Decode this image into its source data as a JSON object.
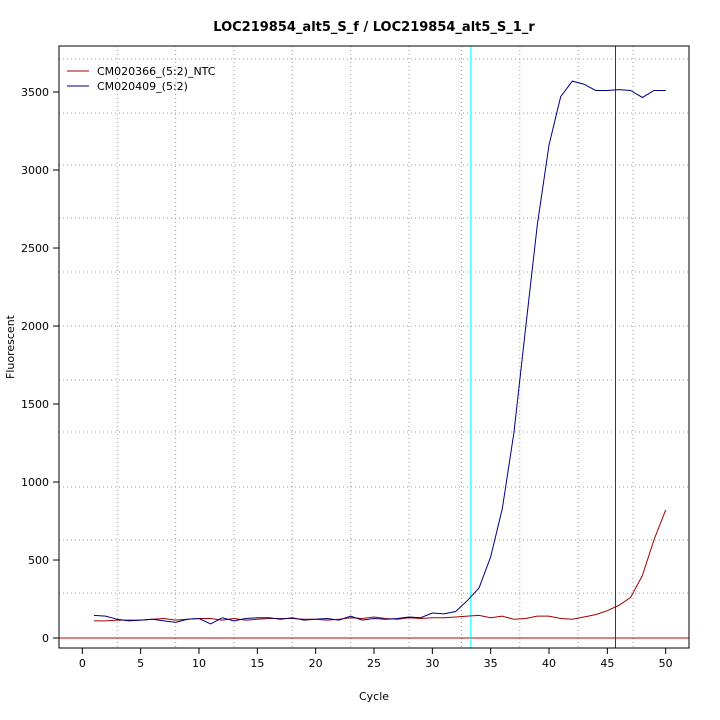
{
  "chart_data": {
    "type": "line",
    "title": "LOC219854_alt5_S_f / LOC219854_alt5_S_1_r",
    "x_label": "Cycle",
    "y_label": "Fluorescent",
    "x": [
      1,
      2,
      3,
      4,
      5,
      6,
      7,
      8,
      9,
      10,
      11,
      12,
      13,
      14,
      15,
      16,
      17,
      18,
      19,
      20,
      21,
      22,
      23,
      24,
      25,
      26,
      27,
      28,
      29,
      30,
      31,
      32,
      33,
      34,
      35,
      36,
      37,
      38,
      39,
      40,
      41,
      42,
      43,
      44,
      45,
      46,
      47,
      48,
      49,
      50
    ],
    "series": [
      {
        "name": "CM020366_(5:2)_NTC",
        "color": "#a00000",
        "values": [
          110,
          110,
          115,
          115,
          115,
          120,
          125,
          115,
          120,
          125,
          125,
          115,
          125,
          115,
          120,
          125,
          125,
          125,
          120,
          120,
          115,
          120,
          130,
          125,
          135,
          125,
          120,
          130,
          125,
          130,
          130,
          135,
          140,
          145,
          130,
          140,
          120,
          125,
          140,
          140,
          125,
          120,
          135,
          150,
          175,
          210,
          260,
          400,
          630,
          820
        ]
      },
      {
        "name": "CM020409_(5:2)",
        "color": "#000080",
        "values": [
          145,
          140,
          120,
          110,
          115,
          120,
          110,
          100,
          120,
          125,
          90,
          130,
          110,
          125,
          130,
          130,
          120,
          130,
          115,
          120,
          125,
          115,
          140,
          115,
          125,
          120,
          125,
          135,
          130,
          160,
          155,
          170,
          240,
          320,
          520,
          830,
          1320,
          1990,
          2650,
          3160,
          3470,
          3570,
          3550,
          3510,
          3510,
          3515,
          3510,
          3465,
          3510,
          3510
        ]
      }
    ],
    "xlim": [
      -2,
      52
    ],
    "ylim": [
      -64,
      3795
    ],
    "xticks": [
      0,
      5,
      10,
      15,
      20,
      25,
      30,
      35,
      40,
      45,
      50
    ],
    "yticks": [
      0,
      500,
      1000,
      1500,
      2000,
      2500,
      3000,
      3500
    ],
    "xgrid": [
      3,
      8,
      13,
      18,
      23,
      28,
      32.5,
      37.5,
      42.5,
      47.2
    ],
    "ygrid": [
      288,
      628,
      968,
      1321,
      1654,
      2000,
      2346,
      2692,
      3032,
      3365,
      3712
    ],
    "vlines": [
      {
        "value": 33.3,
        "color": "#00ffff"
      },
      {
        "value": 45.7,
        "color": "#c00000"
      }
    ],
    "hlines": [
      {
        "value": 0,
        "color": "#c00000"
      }
    ],
    "legend": "top-left"
  }
}
